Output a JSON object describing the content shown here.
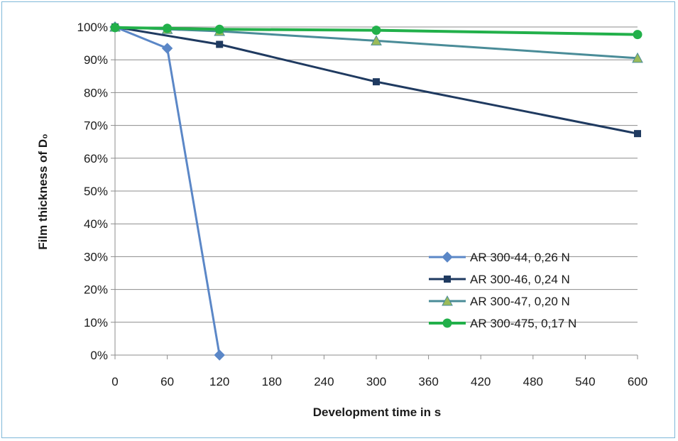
{
  "chart_data": {
    "type": "line",
    "xlabel": "Development time in s",
    "ylabel": "Film thickness of D₀",
    "xlim": [
      0,
      600
    ],
    "ylim": [
      0,
      100
    ],
    "x_ticks": [
      0,
      60,
      120,
      180,
      240,
      300,
      360,
      420,
      480,
      540,
      600
    ],
    "y_ticks": [
      "0%",
      "10%",
      "20%",
      "30%",
      "40%",
      "50%",
      "60%",
      "70%",
      "80%",
      "90%",
      "100%"
    ],
    "grid": "horizontal",
    "legend_position": "bottom-right",
    "series": [
      {
        "name": "AR 300-44, 0,26 N",
        "x": [
          0,
          60,
          120
        ],
        "y": [
          100,
          93.5,
          0
        ],
        "color": "#5b87c7",
        "marker": "diamond"
      },
      {
        "name": "AR 300-46, 0,24 N",
        "x": [
          0,
          120,
          300,
          600
        ],
        "y": [
          100,
          94.7,
          83.3,
          67.5
        ],
        "color": "#1f3a60",
        "marker": "square"
      },
      {
        "name": "AR 300-47, 0,20 N",
        "x": [
          0,
          60,
          120,
          300,
          600
        ],
        "y": [
          100,
          99.3,
          98.7,
          95.8,
          90.5
        ],
        "color": "#4a8c98",
        "marker": "triangle"
      },
      {
        "name": "AR 300-475, 0,17 N",
        "x": [
          0,
          60,
          120,
          300,
          600
        ],
        "y": [
          99.8,
          99.6,
          99.3,
          99.0,
          97.7
        ],
        "color": "#22b04a",
        "marker": "circle"
      }
    ]
  }
}
